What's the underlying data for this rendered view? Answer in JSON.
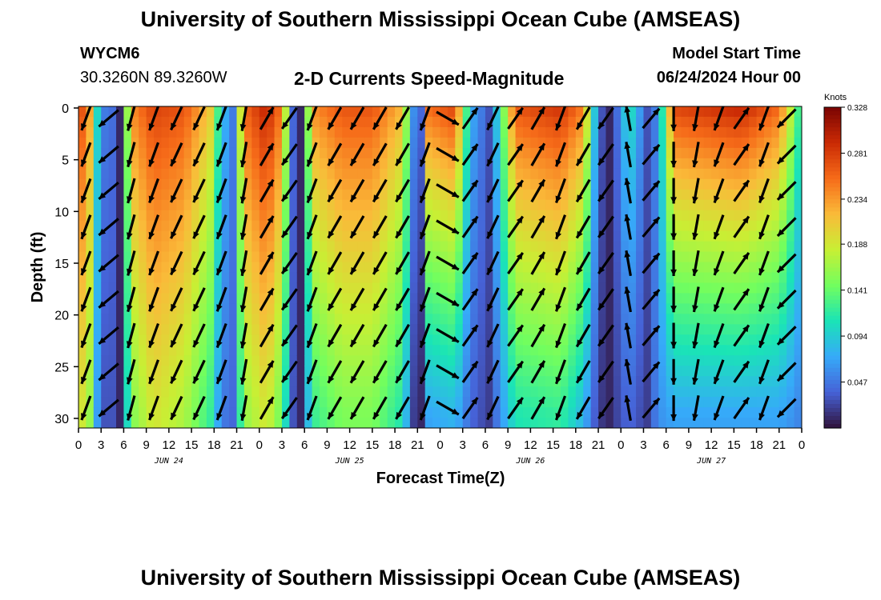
{
  "header": {
    "title": "University of Southern Mississippi Ocean Cube (AMSEAS)",
    "footer_title": "University of Southern Mississippi Ocean Cube (AMSEAS)",
    "station_id": "WYCM6",
    "station_coords": "30.3260N  89.3260W",
    "subtitle": "2-D Currents Speed-Magnitude",
    "model_start_label": "Model Start Time",
    "model_start_value": "06/24/2024 Hour 00"
  },
  "chart_data": {
    "type": "heatmap",
    "title": "2-D Currents Speed-Magnitude",
    "xlabel": "Forecast Time(Z)",
    "ylabel": "Depth (ft)",
    "x_tick_labels": [
      "0",
      "3",
      "6",
      "9",
      "12",
      "15",
      "18",
      "21",
      "0",
      "3",
      "6",
      "9",
      "12",
      "15",
      "18",
      "21",
      "0",
      "3",
      "6",
      "9",
      "12",
      "15",
      "18",
      "21",
      "0",
      "3",
      "6",
      "9",
      "12",
      "15",
      "18",
      "21",
      "0"
    ],
    "x_range_hours": [
      0,
      96
    ],
    "x_day_labels": [
      "JUN 24",
      "JUN 25",
      "JUN 26",
      "JUN 27"
    ],
    "y_tick_labels": [
      "0",
      "5",
      "10",
      "15",
      "20",
      "25",
      "30"
    ],
    "y_range_ft": [
      0,
      31
    ],
    "colorbar": {
      "label": "Knots",
      "min": 0.0,
      "max": 0.328,
      "tick_labels": [
        "0.328",
        "0.281",
        "0.234",
        "0.188",
        "0.141",
        "0.094",
        "0.047"
      ],
      "colors": [
        "#30123b",
        "#4662d7",
        "#36aaf9",
        "#1ae4b6",
        "#72fe5e",
        "#c8ef34",
        "#faba39",
        "#f66b19",
        "#ca2a04",
        "#7a0403"
      ]
    },
    "speed_keyframes": [
      {
        "t": 0.0,
        "top": 0.29,
        "bottom": 0.2
      },
      {
        "t": 1.5,
        "top": 0.23,
        "bottom": 0.16
      },
      {
        "t": 3.0,
        "top": 0.04,
        "bottom": 0.02
      },
      {
        "t": 4.0,
        "top": 0.06,
        "bottom": 0.04
      },
      {
        "t": 5.5,
        "top": 0.01,
        "bottom": 0.01
      },
      {
        "t": 7.0,
        "top": 0.24,
        "bottom": 0.15
      },
      {
        "t": 10.0,
        "top": 0.28,
        "bottom": 0.19
      },
      {
        "t": 14.0,
        "top": 0.27,
        "bottom": 0.17
      },
      {
        "t": 17.5,
        "top": 0.21,
        "bottom": 0.12
      },
      {
        "t": 19.0,
        "top": 0.09,
        "bottom": 0.05
      },
      {
        "t": 20.5,
        "top": 0.05,
        "bottom": 0.04
      },
      {
        "t": 22.0,
        "top": 0.26,
        "bottom": 0.16
      },
      {
        "t": 25.0,
        "top": 0.3,
        "bottom": 0.19
      },
      {
        "t": 27.0,
        "top": 0.25,
        "bottom": 0.14
      },
      {
        "t": 28.5,
        "top": 0.04,
        "bottom": 0.03
      },
      {
        "t": 29.5,
        "top": 0.01,
        "bottom": 0.01
      },
      {
        "t": 31.0,
        "top": 0.24,
        "bottom": 0.12
      },
      {
        "t": 35.0,
        "top": 0.27,
        "bottom": 0.15
      },
      {
        "t": 39.0,
        "top": 0.27,
        "bottom": 0.15
      },
      {
        "t": 43.0,
        "top": 0.22,
        "bottom": 0.11
      },
      {
        "t": 44.5,
        "top": 0.06,
        "bottom": 0.02
      },
      {
        "t": 45.5,
        "top": 0.04,
        "bottom": 0.01
      },
      {
        "t": 46.5,
        "top": 0.26,
        "bottom": 0.07
      },
      {
        "t": 50.0,
        "top": 0.28,
        "bottom": 0.08
      },
      {
        "t": 52.0,
        "top": 0.08,
        "bottom": 0.04
      },
      {
        "t": 54.5,
        "top": 0.03,
        "bottom": 0.02
      },
      {
        "t": 56.0,
        "top": 0.12,
        "bottom": 0.06
      },
      {
        "t": 58.0,
        "top": 0.27,
        "bottom": 0.11
      },
      {
        "t": 64.0,
        "top": 0.29,
        "bottom": 0.12
      },
      {
        "t": 67.0,
        "top": 0.25,
        "bottom": 0.08
      },
      {
        "t": 69.0,
        "top": 0.04,
        "bottom": 0.02
      },
      {
        "t": 70.5,
        "top": 0.01,
        "bottom": 0.01
      },
      {
        "t": 72.0,
        "top": 0.06,
        "bottom": 0.03
      },
      {
        "t": 73.0,
        "top": 0.12,
        "bottom": 0.04
      },
      {
        "t": 75.5,
        "top": 0.03,
        "bottom": 0.02
      },
      {
        "t": 77.0,
        "top": 0.06,
        "bottom": 0.06
      },
      {
        "t": 79.0,
        "top": 0.28,
        "bottom": 0.07
      },
      {
        "t": 88.0,
        "top": 0.3,
        "bottom": 0.07
      },
      {
        "t": 93.0,
        "top": 0.26,
        "bottom": 0.07
      },
      {
        "t": 95.0,
        "top": 0.16,
        "bottom": 0.06
      },
      {
        "t": 96.0,
        "top": 0.1,
        "bottom": 0.05
      }
    ],
    "vector_times_hours": [
      1,
      4,
      7,
      10,
      13,
      16,
      19,
      22,
      25,
      28,
      31,
      34,
      37,
      40,
      43,
      46,
      49,
      52,
      55,
      58,
      61,
      64,
      67,
      70,
      73,
      76,
      79,
      82,
      85,
      88,
      91,
      94
    ],
    "vector_depths_ft": [
      1,
      4.5,
      8,
      11.5,
      15,
      18.5,
      22,
      25.5,
      29
    ],
    "vector_direction_deg_by_column": [
      200,
      230,
      195,
      200,
      205,
      205,
      200,
      190,
      30,
      215,
      200,
      210,
      210,
      210,
      210,
      200,
      120,
      35,
      205,
      35,
      30,
      200,
      210,
      215,
      350,
      40,
      180,
      190,
      200,
      35,
      200,
      225
    ]
  }
}
